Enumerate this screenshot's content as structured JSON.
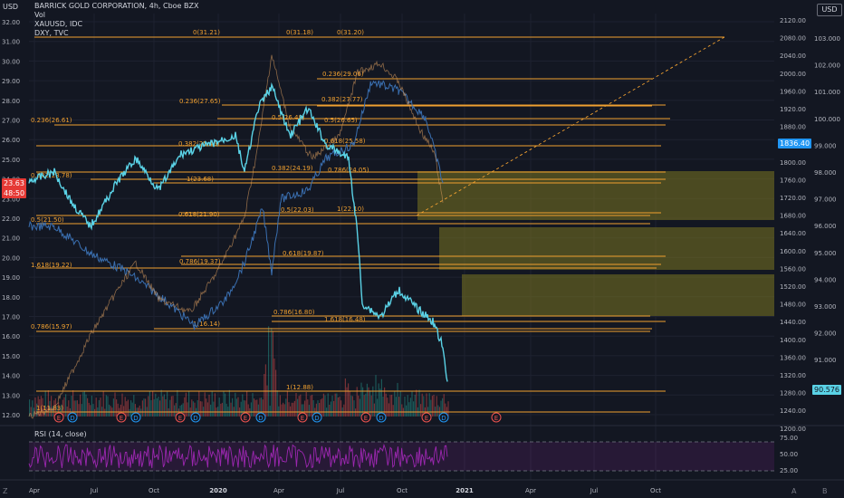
{
  "legend": {
    "line1": "BARRICK GOLD CORPORATION, 4h, Cboe BZX",
    "line2": "Vol",
    "line3": "XAUUSD, IDC",
    "line4": "DXY, TVC"
  },
  "currency_left": "USD",
  "currency_right": "USD",
  "rsi_label": "RSI (14, close)",
  "price_tag_left": {
    "value": "23.63",
    "countdown": "48:50"
  },
  "price_tag_mid": "1836.40",
  "price_tag_right": "90.576",
  "left_axis": [
    "32.00",
    "31.00",
    "30.00",
    "29.00",
    "28.00",
    "27.00",
    "26.00",
    "25.00",
    "24.00",
    "23.00",
    "22.00",
    "21.00",
    "20.00",
    "19.00",
    "18.00",
    "17.00",
    "16.00",
    "15.00",
    "14.00",
    "13.00",
    "12.00"
  ],
  "mid_axis": [
    "2120.00",
    "2080.00",
    "2040.00",
    "2000.00",
    "1960.00",
    "1920.00",
    "1880.00",
    "1840.00",
    "1800.00",
    "1760.00",
    "1720.00",
    "1680.00",
    "1640.00",
    "1600.00",
    "1560.00",
    "1520.00",
    "1480.00",
    "1440.00",
    "1400.00",
    "1360.00",
    "1320.00",
    "1280.00",
    "1240.00",
    "1200.00"
  ],
  "right_axis": [
    "103.000",
    "102.000",
    "101.000",
    "100.000",
    "99.000",
    "98.000",
    "97.000",
    "96.000",
    "95.000",
    "94.000",
    "93.000",
    "92.000",
    "91.000",
    "90.000"
  ],
  "rsi_axis": [
    "75.00",
    "50.00",
    "25.00"
  ],
  "time_axis": [
    "Apr",
    "Jul",
    "Oct",
    "2020",
    "Apr",
    "Jul",
    "Oct",
    "2021",
    "Apr",
    "Jul",
    "Oct"
  ],
  "fib_labels": [
    "0(31.21)",
    "0(31.18)",
    "0(31.20)",
    "0.236(29.06)",
    "0.382(27.77)",
    "0.236(27.65)",
    "0.236(26.61)",
    "0.382(25.45)",
    "0.618(25.58)",
    "0.382(24.19)",
    "0.786(24.05)",
    "0.382(23.78)",
    "1(23.68)",
    "0.618(21.90)",
    "0.5(22.03)",
    "1(22.10)",
    "0.5(21.50)",
    "0.618(19.87)",
    "1.618(19.22)",
    "0.786(19.37)",
    "0.786(16.80)",
    "1.618(16.48)",
    "0.786(15.97)",
    "1(16.14)",
    "1(12.88)",
    "1(11.83)",
    "0.5(26.48)",
    "0.5(26.65)"
  ],
  "events": [
    "E",
    "D",
    "E",
    "D",
    "E",
    "D",
    "E",
    "D",
    "E",
    "D",
    "E",
    "D",
    "E",
    "D",
    "E",
    "D",
    "E"
  ],
  "bottom_icons": {
    "goto": "Z",
    "gear": "A",
    "log": "B"
  },
  "colors": {
    "bg": "#131722",
    "gold": "#4caf50",
    "fib": "#f0a030",
    "xau": "#2196f3",
    "barrick": "#5ad2e6",
    "rsi": "#9c27b0",
    "box": "#7a7420",
    "up": "#26a69a",
    "down": "#ef5350"
  }
}
